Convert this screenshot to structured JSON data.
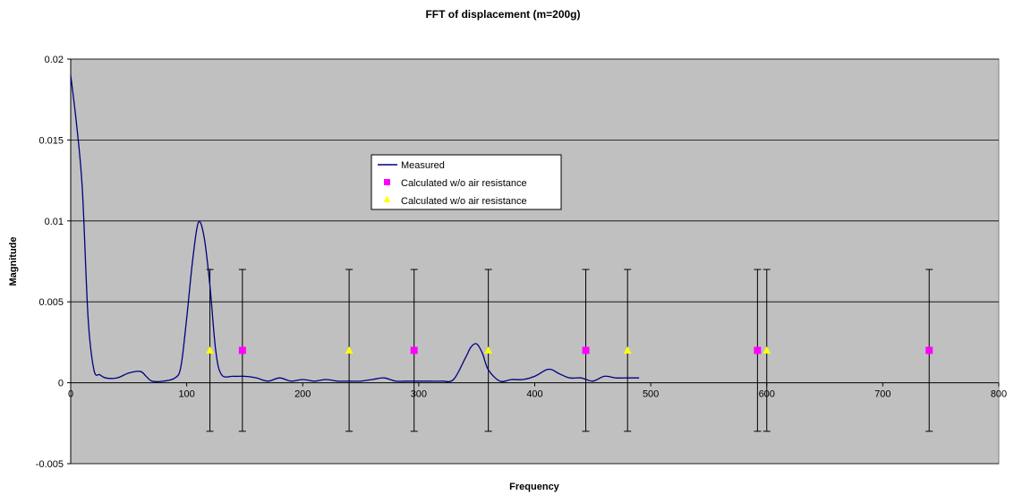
{
  "chart_data": {
    "type": "line",
    "title": "FFT of displacement (m=200g)",
    "xlabel": "Frequency",
    "ylabel": "Magnitude",
    "xlim": [
      0,
      800
    ],
    "ylim": [
      -0.005,
      0.02
    ],
    "x_ticks": [
      0,
      100,
      200,
      300,
      400,
      500,
      600,
      700,
      800
    ],
    "x_tick_labels": [
      "0",
      "100",
      "200",
      "300",
      "400",
      "500",
      "600",
      "700",
      "800"
    ],
    "y_ticks": [
      -0.005,
      0,
      0.005,
      0.01,
      0.015,
      0.02
    ],
    "y_tick_labels": [
      "-0.005",
      "0",
      "0.005",
      "0.01",
      "0.015",
      "0.02"
    ],
    "grid": "horizontal major gridlines",
    "plot_area_color": "#c0c0c0",
    "legend_position": "upper-middle",
    "series": [
      {
        "name": "Measured",
        "kind": "line",
        "color": "#000080",
        "x": [
          0,
          5,
          10,
          15,
          20,
          25,
          30,
          40,
          50,
          60,
          65,
          70,
          80,
          90,
          95,
          100,
          105,
          110,
          115,
          120,
          125,
          130,
          140,
          150,
          160,
          170,
          180,
          190,
          200,
          210,
          220,
          230,
          240,
          250,
          260,
          270,
          280,
          290,
          300,
          310,
          320,
          330,
          340,
          345,
          350,
          355,
          360,
          370,
          380,
          390,
          400,
          410,
          415,
          420,
          430,
          440,
          450,
          460,
          470,
          480,
          490
        ],
        "y": [
          0.019,
          0.016,
          0.012,
          0.004,
          0.0008,
          0.0005,
          0.0003,
          0.0003,
          0.0006,
          0.0007,
          0.0004,
          0.0001,
          0.0001,
          0.0003,
          0.001,
          0.004,
          0.0075,
          0.0099,
          0.009,
          0.006,
          0.002,
          0.0005,
          0.0004,
          0.0004,
          0.0003,
          0.0001,
          0.0003,
          0.0001,
          0.0002,
          0.0001,
          0.0002,
          0.0001,
          0.0001,
          0.0001,
          0.0002,
          0.0003,
          0.0001,
          0.0001,
          0.0001,
          0.0001,
          0.0001,
          0.0002,
          0.0015,
          0.0022,
          0.0024,
          0.0018,
          0.0008,
          0.0001,
          0.0002,
          0.0002,
          0.0004,
          0.0008,
          0.0008,
          0.0006,
          0.0003,
          0.0003,
          0.0001,
          0.0004,
          0.0003,
          0.0003,
          0.0003
        ]
      },
      {
        "name": "Calculated w/o air resistance",
        "kind": "scatter",
        "marker": "square",
        "color": "#ff00ff",
        "x": [
          148,
          296,
          444,
          592,
          740
        ],
        "y": [
          0.002,
          0.002,
          0.002,
          0.002,
          0.002
        ],
        "error_bars": {
          "lower": -0.003,
          "upper": 0.007
        }
      },
      {
        "name": "Calculated w/o air resistance",
        "kind": "scatter",
        "marker": "triangle",
        "color": "#ffff00",
        "x": [
          120,
          240,
          360,
          480,
          600
        ],
        "y": [
          0.002,
          0.002,
          0.002,
          0.002,
          0.002
        ],
        "error_bars": {
          "lower": -0.003,
          "upper": 0.007
        }
      }
    ]
  }
}
